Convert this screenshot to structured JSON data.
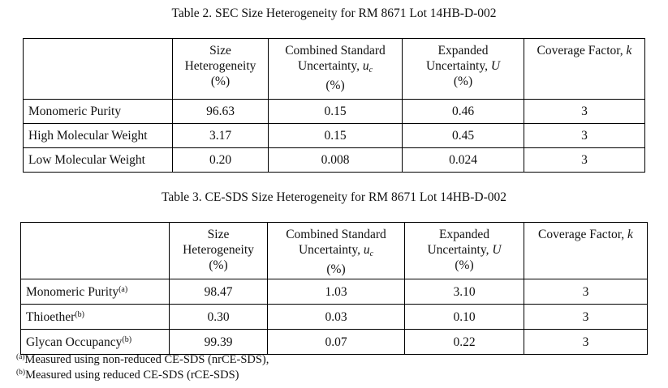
{
  "tables": [
    {
      "title": "Table 2.  SEC Size Heterogeneity for RM 8671 Lot 14HB-D-002",
      "header": [
        [],
        [
          [
            "Size"
          ],
          [
            "Heterogeneity"
          ],
          [
            "(%)"
          ]
        ],
        [
          [
            "Combined Standard"
          ],
          [
            "Uncertainty, ",
            {
              "text": "u",
              "style": "italic"
            },
            {
              "text": "c",
              "style": "italic-sub"
            }
          ],
          [
            "(%)"
          ]
        ],
        [
          [
            "Expanded"
          ],
          [
            "Uncertainty, ",
            {
              "text": "U",
              "style": "italic"
            }
          ],
          [
            "(%)"
          ]
        ],
        [
          [
            "Coverage Factor, ",
            {
              "text": "k",
              "style": "italic"
            }
          ]
        ]
      ],
      "rows": [
        [
          {
            "text": "Monomeric Purity"
          },
          "96.63",
          "0.15",
          "0.46",
          "3"
        ],
        [
          {
            "text": "High Molecular Weight"
          },
          "3.17",
          "0.15",
          "0.45",
          "3"
        ],
        [
          {
            "text": "Low Molecular Weight"
          },
          "0.20",
          "0.008",
          "0.024",
          "3"
        ]
      ]
    },
    {
      "title": "Table 3.  CE-SDS Size Heterogeneity for RM 8671 Lot 14HB-D-002",
      "header": [
        [],
        [
          [
            "Size"
          ],
          [
            "Heterogeneity"
          ],
          [
            "(%)"
          ]
        ],
        [
          [
            "Combined Standard"
          ],
          [
            "Uncertainty, ",
            {
              "text": "u",
              "style": "italic"
            },
            {
              "text": "c",
              "style": "italic-sub"
            }
          ],
          [
            "(%)"
          ]
        ],
        [
          [
            "Expanded"
          ],
          [
            "Uncertainty, ",
            {
              "text": "U",
              "style": "italic"
            }
          ],
          [
            "(%)"
          ]
        ],
        [
          [
            "Coverage Factor, ",
            {
              "text": "k",
              "style": "italic"
            }
          ]
        ]
      ],
      "rows": [
        [
          {
            "text": "Monomeric Purity",
            "note": "(a)"
          },
          "98.47",
          "1.03",
          "3.10",
          "3"
        ],
        [
          {
            "text": "Thioether",
            "note": "(b)"
          },
          "0.30",
          "0.03",
          "0.10",
          "3"
        ],
        [
          {
            "text": "Glycan Occupancy",
            "note": "(b)"
          },
          "99.39",
          "0.07",
          "0.22",
          "3"
        ]
      ]
    }
  ],
  "footnotes": [
    {
      "mark": "(a)",
      "text": "Measured using non-reduced CE-SDS (nrCE-SDS),"
    },
    {
      "mark": "(b)",
      "text": "Measured using reduced CE-SDS (rCE-SDS)"
    }
  ]
}
